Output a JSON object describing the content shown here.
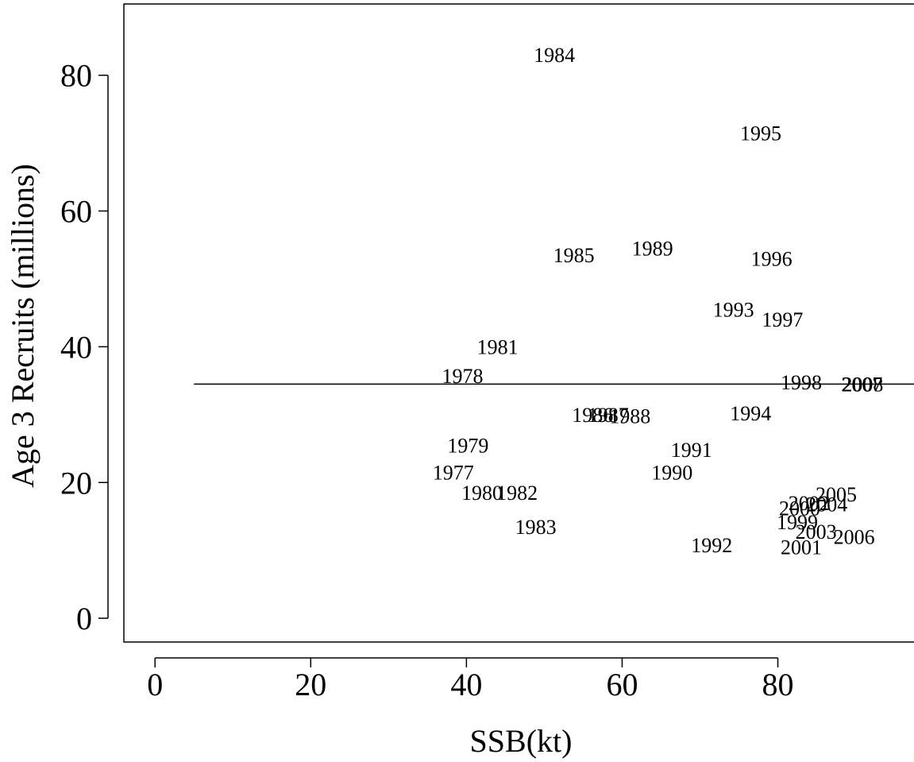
{
  "chart_data": {
    "type": "scatter",
    "xlabel": "SSB(kt)",
    "ylabel": "Age 3 Recruits (millions)",
    "xlim": [
      -4,
      98
    ],
    "ylim": [
      -3.5,
      90.5
    ],
    "x_ticks": [
      0,
      20,
      40,
      60,
      80
    ],
    "y_ticks": [
      0,
      20,
      40,
      60,
      80
    ],
    "grid": false,
    "hline": {
      "y": 34.5,
      "x_from": 5,
      "x_to": 98
    },
    "points": [
      {
        "label": "1977",
        "x": 38.3,
        "y": 21.5
      },
      {
        "label": "1978",
        "x": 39.5,
        "y": 35.7
      },
      {
        "label": "1979",
        "x": 40.2,
        "y": 25.5
      },
      {
        "label": "1980",
        "x": 42.0,
        "y": 18.5
      },
      {
        "label": "1981",
        "x": 44.0,
        "y": 40.0
      },
      {
        "label": "1982",
        "x": 46.5,
        "y": 18.5
      },
      {
        "label": "1983",
        "x": 48.9,
        "y": 13.5
      },
      {
        "label": "1984",
        "x": 51.3,
        "y": 83.0
      },
      {
        "label": "1985",
        "x": 53.8,
        "y": 53.5
      },
      {
        "label": "1986",
        "x": 56.2,
        "y": 30.0
      },
      {
        "label": "1987",
        "x": 58.2,
        "y": 30.0
      },
      {
        "label": "1988",
        "x": 61.0,
        "y": 29.8
      },
      {
        "label": "1989",
        "x": 63.9,
        "y": 54.5
      },
      {
        "label": "1990",
        "x": 66.4,
        "y": 21.5
      },
      {
        "label": "1991",
        "x": 68.9,
        "y": 24.8
      },
      {
        "label": "1992",
        "x": 71.5,
        "y": 10.8
      },
      {
        "label": "1993",
        "x": 74.3,
        "y": 45.5
      },
      {
        "label": "1994",
        "x": 76.5,
        "y": 30.2
      },
      {
        "label": "1995",
        "x": 77.8,
        "y": 71.5
      },
      {
        "label": "1996",
        "x": 79.2,
        "y": 53.0
      },
      {
        "label": "1997",
        "x": 80.6,
        "y": 44.0
      },
      {
        "label": "1998",
        "x": 83.0,
        "y": 34.8
      },
      {
        "label": "1999",
        "x": 82.5,
        "y": 14.2
      },
      {
        "label": "2000",
        "x": 82.8,
        "y": 16.2
      },
      {
        "label": "2001",
        "x": 83.0,
        "y": 10.5
      },
      {
        "label": "2002",
        "x": 84.0,
        "y": 17.0
      },
      {
        "label": "2003",
        "x": 84.9,
        "y": 12.8
      },
      {
        "label": "2004",
        "x": 86.3,
        "y": 16.8
      },
      {
        "label": "2005",
        "x": 87.5,
        "y": 18.3
      },
      {
        "label": "2006",
        "x": 89.8,
        "y": 12.0
      },
      {
        "label": "2007",
        "x": 90.8,
        "y": 34.5
      },
      {
        "label": "2008",
        "x": 90.9,
        "y": 34.5
      }
    ]
  }
}
